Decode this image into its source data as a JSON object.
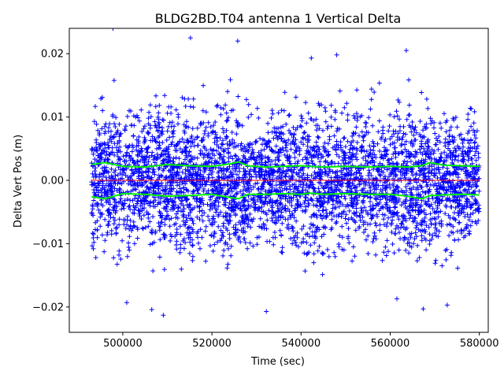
{
  "chart_data": {
    "type": "scatter",
    "title": "BLDG2BD.T04 antenna 1 Vertical Delta",
    "xlabel": "Time (sec)",
    "ylabel": "Delta Vert Pos (m)",
    "xlim": [
      488000,
      582000
    ],
    "ylim": [
      -0.024,
      0.024
    ],
    "x_ticks": [
      {
        "value": 500000,
        "label": "500000"
      },
      {
        "value": 520000,
        "label": "520000"
      },
      {
        "value": 540000,
        "label": "540000"
      },
      {
        "value": 560000,
        "label": "560000"
      },
      {
        "value": 580000,
        "label": "580000"
      }
    ],
    "y_ticks": [
      {
        "value": -0.02,
        "label": "−0.02"
      },
      {
        "value": -0.01,
        "label": "−0.01"
      },
      {
        "value": 0.0,
        "label": "0.00"
      },
      {
        "value": 0.01,
        "label": "0.01"
      },
      {
        "value": 0.02,
        "label": "0.02"
      }
    ],
    "grid": false,
    "series": [
      {
        "kind": "scatter",
        "marker": "plus",
        "color": "#0000ff",
        "x_range": [
          493000,
          580000
        ],
        "center": 0.0,
        "envelope_x": [
          493000,
          497000,
          505000,
          510000,
          520000,
          526000,
          532000,
          537000,
          542000,
          550000,
          560000,
          564000,
          569000,
          575000,
          580000
        ],
        "envelope_y": [
          0.012,
          0.013,
          0.012,
          0.013,
          0.012,
          0.013,
          0.01,
          0.012,
          0.014,
          0.012,
          0.012,
          0.014,
          0.013,
          0.013,
          0.011
        ],
        "outliers": [
          {
            "x": 497800,
            "y": 0.024
          },
          {
            "x": 515200,
            "y": 0.0225
          },
          {
            "x": 525800,
            "y": 0.022
          },
          {
            "x": 563600,
            "y": 0.0205
          },
          {
            "x": 548000,
            "y": 0.0198
          },
          {
            "x": 542300,
            "y": 0.0193
          },
          {
            "x": 509100,
            "y": -0.0213
          },
          {
            "x": 506500,
            "y": -0.0204
          },
          {
            "x": 532200,
            "y": -0.0207
          },
          {
            "x": 567400,
            "y": -0.0203
          },
          {
            "x": 572800,
            "y": -0.0197
          },
          {
            "x": 500900,
            "y": -0.0193
          },
          {
            "x": 561500,
            "y": -0.0187
          }
        ]
      },
      {
        "kind": "line",
        "color": "#00ee00",
        "x": [
          493000,
          496000,
          500000,
          505000,
          510000,
          515000,
          520000,
          524000,
          526000,
          528000,
          532000,
          536000,
          540000,
          542000,
          545000,
          550000,
          555000,
          560000,
          564000,
          567000,
          569000,
          572000,
          576000,
          580000
        ],
        "y": [
          0.0025,
          0.0028,
          0.0022,
          0.0021,
          0.0025,
          0.0023,
          0.0022,
          0.0026,
          0.0029,
          0.0023,
          0.0021,
          0.0022,
          0.0023,
          0.0022,
          0.0021,
          0.0022,
          0.0021,
          0.0022,
          0.0021,
          0.0023,
          0.0028,
          0.0024,
          0.0023,
          0.0022
        ]
      },
      {
        "kind": "line",
        "color": "#00ee00",
        "x": [
          493000,
          496000,
          500000,
          505000,
          510000,
          515000,
          520000,
          524000,
          526000,
          528000,
          532000,
          536000,
          540000,
          542000,
          545000,
          550000,
          555000,
          560000,
          564000,
          567000,
          569000,
          572000,
          576000,
          580000
        ],
        "y": [
          -0.0026,
          -0.0029,
          -0.0021,
          -0.0022,
          -0.0025,
          -0.0024,
          -0.0022,
          -0.0027,
          -0.0029,
          -0.0022,
          -0.0022,
          -0.0021,
          -0.0022,
          -0.002,
          -0.0022,
          -0.0021,
          -0.0022,
          -0.0022,
          -0.0025,
          -0.0029,
          -0.0024,
          -0.0023,
          -0.0022,
          -0.0023
        ]
      },
      {
        "kind": "line",
        "color": "#ff0000",
        "x": [
          493000,
          580000
        ],
        "y": [
          0.0,
          0.0
        ]
      }
    ]
  }
}
